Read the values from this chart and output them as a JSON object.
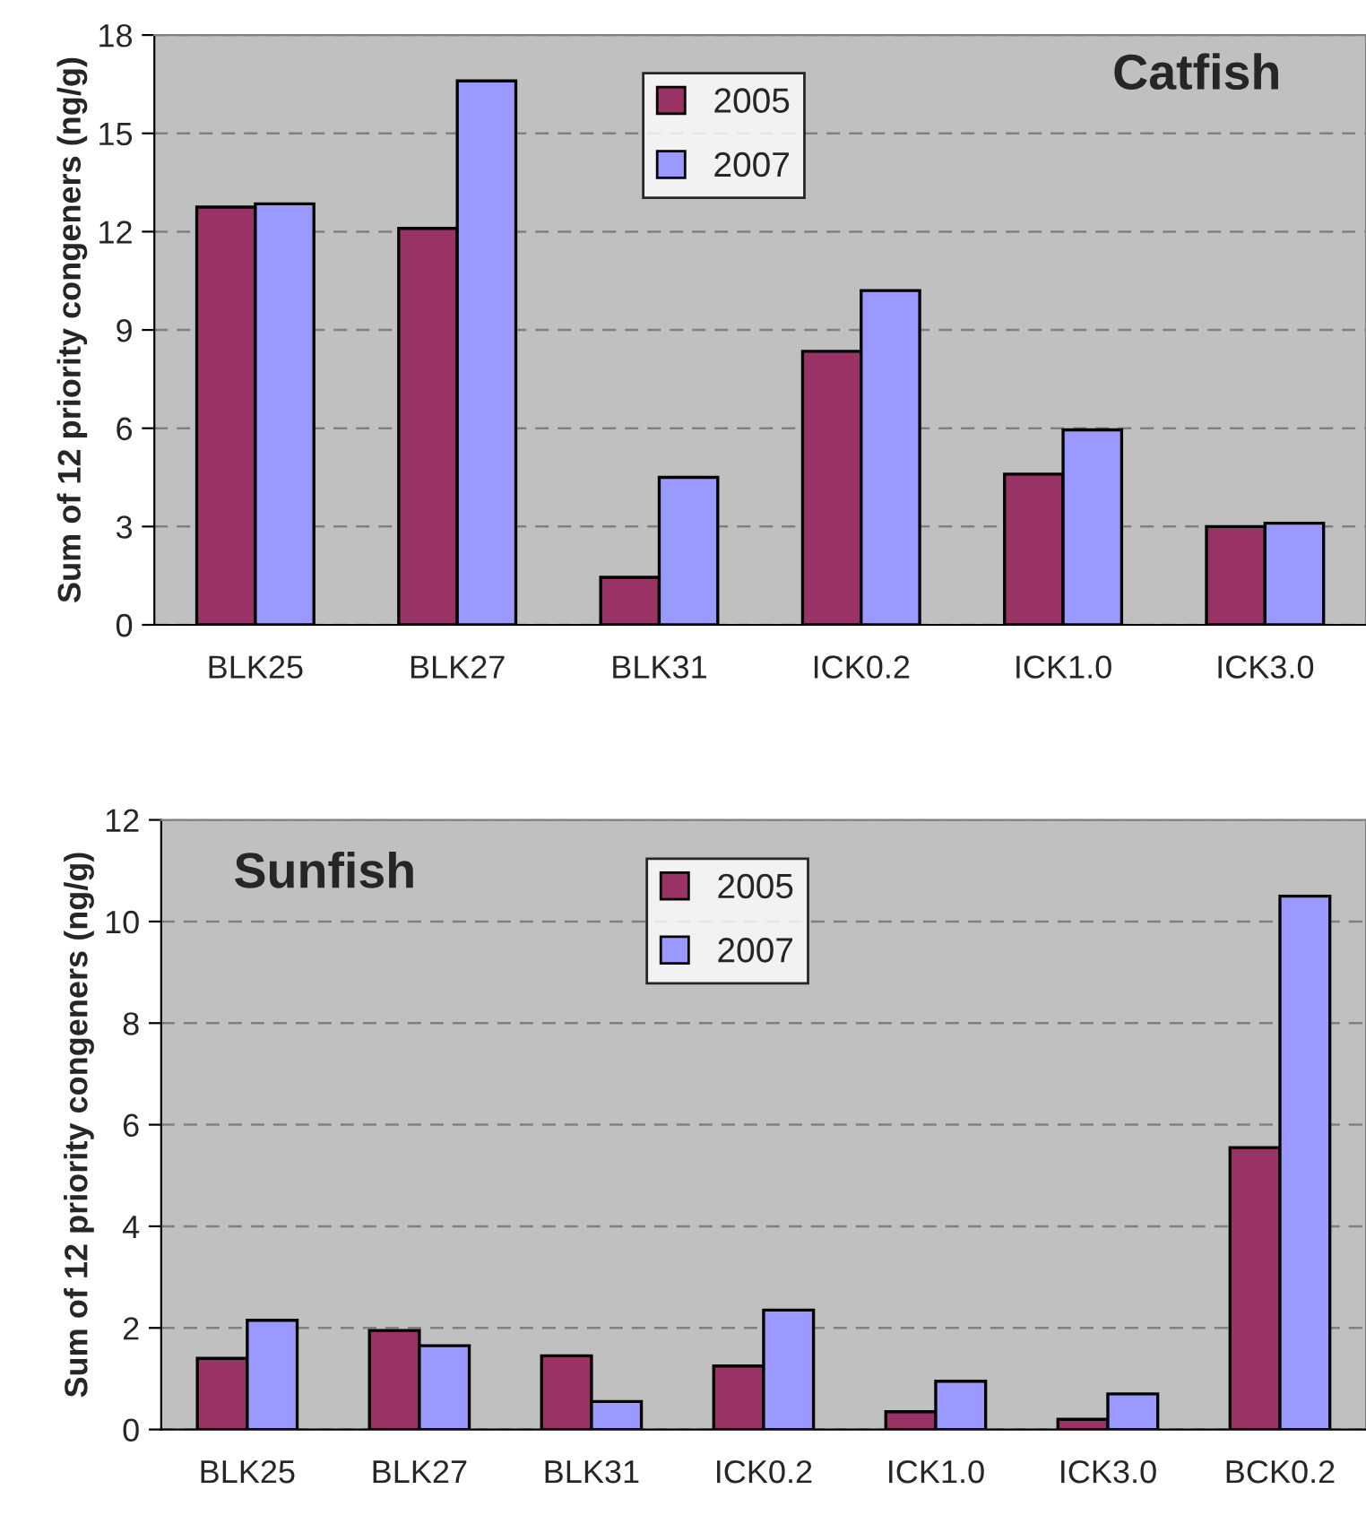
{
  "chart_data": [
    {
      "type": "bar",
      "title": "Catfish",
      "ylabel": "Sum of 12 priority congeners (ng/g)",
      "categories": [
        "BLK25",
        "BLK27",
        "BLK31",
        "ICK0.2",
        "ICK1.0",
        "ICK3.0"
      ],
      "series": [
        {
          "name": "2005",
          "color": "#993366",
          "values": [
            12.75,
            12.1,
            1.45,
            8.35,
            4.6,
            3.0
          ]
        },
        {
          "name": "2007",
          "color": "#9999ff",
          "values": [
            12.85,
            16.6,
            4.5,
            10.2,
            5.95,
            3.1
          ]
        }
      ],
      "ylim": [
        0,
        18
      ],
      "yticks": [
        0,
        3,
        6,
        9,
        12,
        15,
        18
      ],
      "grid": "y",
      "legend": "top"
    },
    {
      "type": "bar",
      "title": "Sunfish",
      "ylabel": "Sum of 12 priority congeners (ng/g)",
      "categories": [
        "BLK25",
        "BLK27",
        "BLK31",
        "ICK0.2",
        "ICK1.0",
        "ICK3.0",
        "BCK0.2"
      ],
      "series": [
        {
          "name": "2005",
          "color": "#993366",
          "values": [
            1.4,
            1.95,
            1.45,
            1.25,
            0.35,
            0.2,
            5.55
          ]
        },
        {
          "name": "2007",
          "color": "#9999ff",
          "values": [
            2.15,
            1.65,
            0.55,
            2.35,
            0.95,
            0.7,
            10.5
          ]
        }
      ],
      "ylim": [
        0,
        12
      ],
      "yticks": [
        0,
        2,
        4,
        6,
        8,
        10,
        12
      ],
      "grid": "y",
      "legend": "top"
    }
  ]
}
